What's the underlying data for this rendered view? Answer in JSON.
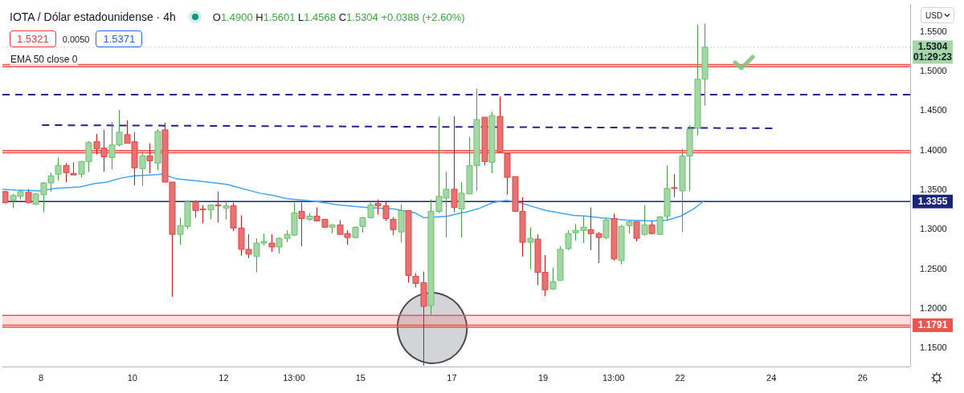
{
  "chart_data": {
    "type": "candlestick",
    "title": "IOTA / Dólar estadounidense · 4h",
    "subtitle": "O1.4900 H1.5601 L1.4568 C1.5304 +0.0388 (+2.60%)",
    "ylabel": "USD",
    "annotations": [
      "1.5321",
      "0.0050",
      "1.5371",
      "EMA 50 close 0"
    ],
    "x": [
      "--12-07T05:00",
      "--12-07T09:00",
      "--12-07T13:00",
      "--12-07T17:00",
      "--12-07T21:00",
      "--12-08T01:00",
      "--12-08T05:00",
      "--12-08T09:00",
      "--12-08T13:00",
      "--12-08T17:00",
      "--12-08T21:00",
      "--12-09T01:00",
      "--12-09T05:00",
      "--12-09T09:00",
      "--12-09T13:00",
      "--12-09T17:00",
      "--12-09T21:00",
      "--12-10T01:00",
      "--12-10T05:00",
      "--12-10T09:00",
      "--12-10T13:00",
      "--12-10T17:00",
      "--12-10T21:00",
      "--12-11T01:00",
      "--12-11T05:00",
      "--12-11T09:00",
      "--12-11T13:00",
      "--12-11T17:00",
      "--12-11T21:00",
      "--12-12T01:00",
      "--12-12T05:00",
      "--12-12T09:00",
      "--12-12T13:00",
      "--12-12T17:00",
      "--12-12T21:00",
      "--12-13T01:00",
      "--12-13T05:00",
      "--12-13T09:00",
      "--12-13T13:00",
      "--12-13T17:00",
      "--12-13T21:00",
      "--12-14T01:00",
      "--12-14T05:00",
      "--12-14T09:00",
      "--12-14T13:00",
      "--12-14T17:00",
      "--12-14T21:00",
      "--12-15T01:00",
      "--12-15T05:00",
      "--12-15T09:00",
      "--12-15T13:00",
      "--12-15T17:00",
      "--12-15T21:00",
      "--12-16T01:00",
      "--12-16T05:00",
      "--12-16T09:00",
      "--12-16T13:00",
      "--12-16T17:00",
      "--12-16T21:00",
      "--12-17T01:00",
      "--12-17T05:00",
      "--12-17T09:00",
      "--12-17T13:00",
      "--12-17T17:00",
      "--12-17T21:00",
      "--12-18T01:00",
      "--12-18T05:00",
      "--12-18T09:00",
      "--12-18T13:00",
      "--12-18T17:00",
      "--12-18T21:00",
      "--12-19T01:00",
      "--12-19T05:00",
      "--12-19T09:00",
      "--12-19T13:00",
      "--12-19T17:00",
      "--12-19T21:00",
      "--12-20T01:00",
      "--12-20T05:00",
      "--12-20T09:00",
      "--12-20T13:00",
      "--12-20T17:00",
      "--12-20T21:00",
      "--12-21T01:00",
      "--12-21T05:00",
      "--12-21T09:00",
      "--12-21T13:00",
      "--12-21T17:00",
      "--12-21T21:00",
      "--12-22T01:00",
      "--12-22T05:00",
      "--12-22T09:00",
      "--12-22T13:00"
    ],
    "ohlc": [
      [
        1.348,
        1.349,
        1.333,
        1.334
      ],
      [
        1.337,
        1.345,
        1.327,
        1.343
      ],
      [
        1.342,
        1.35,
        1.338,
        1.348
      ],
      [
        1.347,
        1.351,
        1.333,
        1.334
      ],
      [
        1.332,
        1.346,
        1.331,
        1.345
      ],
      [
        1.344,
        1.36,
        1.322,
        1.359
      ],
      [
        1.359,
        1.372,
        1.348,
        1.368
      ],
      [
        1.37,
        1.391,
        1.362,
        1.381
      ],
      [
        1.381,
        1.384,
        1.36,
        1.372
      ],
      [
        1.371,
        1.385,
        1.369,
        1.369
      ],
      [
        1.37,
        1.387,
        1.366,
        1.386
      ],
      [
        1.386,
        1.412,
        1.373,
        1.41
      ],
      [
        1.411,
        1.421,
        1.395,
        1.402
      ],
      [
        1.403,
        1.426,
        1.373,
        1.392
      ],
      [
        1.391,
        1.436,
        1.376,
        1.407
      ],
      [
        1.407,
        1.451,
        1.405,
        1.423
      ],
      [
        1.42,
        1.438,
        1.409,
        1.409
      ],
      [
        1.411,
        1.423,
        1.356,
        1.378
      ],
      [
        1.377,
        1.398,
        1.355,
        1.393
      ],
      [
        1.393,
        1.409,
        1.371,
        1.387
      ],
      [
        1.384,
        1.427,
        1.375,
        1.424
      ],
      [
        1.426,
        1.435,
        1.36,
        1.36
      ],
      [
        1.36,
        1.36,
        1.215,
        1.294
      ],
      [
        1.294,
        1.315,
        1.281,
        1.305
      ],
      [
        1.304,
        1.335,
        1.301,
        1.335
      ],
      [
        1.335,
        1.337,
        1.315,
        1.324
      ],
      [
        1.326,
        1.331,
        1.308,
        1.325
      ],
      [
        1.325,
        1.332,
        1.313,
        1.331
      ],
      [
        1.331,
        1.348,
        1.309,
        1.33
      ],
      [
        1.327,
        1.337,
        1.313,
        1.33
      ],
      [
        1.33,
        1.334,
        1.298,
        1.302
      ],
      [
        1.302,
        1.318,
        1.267,
        1.275
      ],
      [
        1.275,
        1.294,
        1.264,
        1.269
      ],
      [
        1.266,
        1.289,
        1.246,
        1.283
      ],
      [
        1.283,
        1.295,
        1.28,
        1.285
      ],
      [
        1.283,
        1.294,
        1.272,
        1.278
      ],
      [
        1.278,
        1.29,
        1.27,
        1.289
      ],
      [
        1.289,
        1.299,
        1.284,
        1.294
      ],
      [
        1.293,
        1.334,
        1.292,
        1.321
      ],
      [
        1.323,
        1.334,
        1.279,
        1.314
      ],
      [
        1.313,
        1.321,
        1.311,
        1.317
      ],
      [
        1.317,
        1.328,
        1.311,
        1.311
      ],
      [
        1.313,
        1.313,
        1.303,
        1.303
      ],
      [
        1.303,
        1.307,
        1.295,
        1.306
      ],
      [
        1.306,
        1.312,
        1.294,
        1.294
      ],
      [
        1.295,
        1.299,
        1.281,
        1.29
      ],
      [
        1.29,
        1.304,
        1.289,
        1.303
      ],
      [
        1.304,
        1.316,
        1.296,
        1.315
      ],
      [
        1.315,
        1.336,
        1.314,
        1.331
      ],
      [
        1.333,
        1.338,
        1.319,
        1.33
      ],
      [
        1.33,
        1.335,
        1.311,
        1.314
      ],
      [
        1.313,
        1.316,
        1.293,
        1.3
      ],
      [
        1.297,
        1.332,
        1.284,
        1.324
      ],
      [
        1.324,
        1.324,
        1.233,
        1.242
      ],
      [
        1.241,
        1.245,
        1.227,
        1.232
      ],
      [
        1.233,
        1.247,
        1.128,
        1.203
      ],
      [
        1.204,
        1.338,
        1.192,
        1.323
      ],
      [
        1.323,
        1.442,
        1.321,
        1.342
      ],
      [
        1.34,
        1.373,
        1.29,
        1.351
      ],
      [
        1.351,
        1.443,
        1.322,
        1.328
      ],
      [
        1.326,
        1.36,
        1.29,
        1.346
      ],
      [
        1.345,
        1.417,
        1.345,
        1.381
      ],
      [
        1.381,
        1.478,
        1.349,
        1.439
      ],
      [
        1.442,
        1.442,
        1.381,
        1.386
      ],
      [
        1.385,
        1.449,
        1.371,
        1.444
      ],
      [
        1.443,
        1.468,
        1.398,
        1.398
      ],
      [
        1.396,
        1.396,
        1.344,
        1.366
      ],
      [
        1.367,
        1.367,
        1.323,
        1.323
      ],
      [
        1.323,
        1.341,
        1.266,
        1.284
      ],
      [
        1.284,
        1.303,
        1.25,
        1.289
      ],
      [
        1.288,
        1.294,
        1.23,
        1.246
      ],
      [
        1.246,
        1.268,
        1.216,
        1.224
      ],
      [
        1.225,
        1.252,
        1.224,
        1.234
      ],
      [
        1.236,
        1.279,
        1.236,
        1.275
      ],
      [
        1.276,
        1.299,
        1.274,
        1.295
      ],
      [
        1.296,
        1.307,
        1.286,
        1.299
      ],
      [
        1.299,
        1.317,
        1.283,
        1.303
      ],
      [
        1.3,
        1.328,
        1.274,
        1.295
      ],
      [
        1.295,
        1.297,
        1.258,
        1.29
      ],
      [
        1.29,
        1.315,
        1.288,
        1.312
      ],
      [
        1.314,
        1.32,
        1.261,
        1.263
      ],
      [
        1.261,
        1.306,
        1.256,
        1.304
      ],
      [
        1.305,
        1.312,
        1.295,
        1.31
      ],
      [
        1.31,
        1.31,
        1.285,
        1.289
      ],
      [
        1.294,
        1.331,
        1.292,
        1.306
      ],
      [
        1.306,
        1.311,
        1.294,
        1.295
      ],
      [
        1.294,
        1.317,
        1.294,
        1.316
      ],
      [
        1.317,
        1.381,
        1.311,
        1.352
      ],
      [
        1.353,
        1.37,
        1.341,
        1.352
      ],
      [
        1.349,
        1.402,
        1.297,
        1.393
      ],
      [
        1.393,
        1.432,
        1.349,
        1.427
      ],
      [
        1.428,
        1.559,
        1.419,
        1.49
      ],
      [
        1.49,
        1.5601,
        1.4568,
        1.5304
      ]
    ],
    "colors": [
      "#e57373",
      "#a5d6a7",
      "#a5d6a7",
      "#e57373",
      "#a5d6a7",
      "#a5d6a7",
      "#a5d6a7",
      "#a5d6a7",
      "#e57373",
      "#e57373",
      "#a5d6a7",
      "#a5d6a7",
      "#e57373",
      "#e57373",
      "#a5d6a7",
      "#a5d6a7",
      "#e57373",
      "#e57373",
      "#a5d6a7",
      "#e57373",
      "#a5d6a7",
      "#e57373",
      "#e57373",
      "#a5d6a7",
      "#a5d6a7",
      "#e57373",
      "#e57373",
      "#a5d6a7",
      "#e57373",
      "#a5d6a7",
      "#e57373",
      "#e57373",
      "#e57373",
      "#a5d6a7",
      "#a5d6a7",
      "#e57373",
      "#a5d6a7",
      "#a5d6a7",
      "#a5d6a7",
      "#e57373",
      "#a5d6a7",
      "#e57373",
      "#e57373",
      "#a5d6a7",
      "#e57373",
      "#e57373",
      "#a5d6a7",
      "#a5d6a7",
      "#a5d6a7",
      "#e57373",
      "#e57373",
      "#e57373",
      "#a5d6a7",
      "#e57373",
      "#e57373",
      "#e57373",
      "#a5d6a7",
      "#a5d6a7",
      "#a5d6a7",
      "#e57373",
      "#a5d6a7",
      "#a5d6a7",
      "#a5d6a7",
      "#e57373",
      "#a5d6a7",
      "#e57373",
      "#e57373",
      "#e57373",
      "#e57373",
      "#a5d6a7",
      "#e57373",
      "#e57373",
      "#a5d6a7",
      "#a5d6a7",
      "#a5d6a7",
      "#a5d6a7",
      "#a5d6a7",
      "#e57373",
      "#e57373",
      "#a5d6a7",
      "#e57373",
      "#a5d6a7",
      "#a5d6a7",
      "#e57373",
      "#a5d6a7",
      "#e57373",
      "#a5d6a7",
      "#a5d6a7",
      "#e57373",
      "#a5d6a7",
      "#a5d6a7",
      "#a5d6a7",
      "#a5d6a7"
    ],
    "series": [
      {
        "type": "line",
        "color": "#42a5f5",
        "x": [
          "--12-07T03:40",
          "--12-07T10:50",
          "--12-07T23:30",
          "--12-08T06:50",
          "--12-08T20:40",
          "--12-09T03:50",
          "--12-09T10:40",
          "--12-09T17:50",
          "--12-10T01:00",
          "--12-10T09:20",
          "--12-10T15:20",
          "--12-10T18:20",
          "--12-10T23:20",
          "--12-11T08:00",
          "--12-11T19:10",
          "--12-12T02:00",
          "--12-12T05:00",
          "--12-12T19:00",
          "--12-13T02:10",
          "--12-13T09:20",
          "--12-13T23:20",
          "--12-14T13:10",
          "--12-15T03:40",
          "--12-15T17:30",
          "--12-16T04:50",
          "--12-16T09:10",
          "--12-16T15:50",
          "--12-16T21:50",
          "--12-17T04:40",
          "--12-17T07:30",
          "--12-17T14:40",
          "--12-17T21:20",
          "--12-18T04:40",
          "--12-18T11:50",
          "--12-18T18:30",
          "--12-19T01:40",
          "--12-19T08:50",
          "--12-19T15:40",
          "--12-19T22:50",
          "--12-20T06:00",
          "--12-20T20:00",
          "--12-21T09:50",
          "--12-21T17:10",
          "--12-22T00:20",
          "--12-22T07:00",
          "--12-22T13:00"
        ],
        "values": [
          1.351,
          1.35,
          1.349,
          1.352,
          1.354,
          1.358,
          1.36,
          1.365,
          1.368,
          1.369,
          1.37,
          1.368,
          1.364,
          1.362,
          1.359,
          1.357,
          1.355,
          1.346,
          1.343,
          1.339,
          1.336,
          1.331,
          1.328,
          1.326,
          1.321,
          1.315,
          1.316,
          1.317,
          1.321,
          1.322,
          1.327,
          1.334,
          1.337,
          1.334,
          1.329,
          1.324,
          1.321,
          1.318,
          1.317,
          1.315,
          1.312,
          1.311,
          1.312,
          1.317,
          1.326,
          1.337
        ]
      },
      {
        "type": "line",
        "color": "#311b92",
        "line_style": "dashed",
        "x": [
          "--12-08T00:30",
          "--12-24T00:30"
        ],
        "values": [
          1.432,
          1.428
        ]
      }
    ],
    "ref_lines": [
      {
        "axis": "y",
        "value": 1.5304,
        "label": "1.5304\n01:29:23",
        "color": "#a5d6a7",
        "line_style": "dotted"
      },
      {
        "axis": "y",
        "value": 1.4705,
        "color": "#311b92",
        "line_style": "dashed"
      },
      {
        "axis": "y",
        "value": 1.3355,
        "label": "1.3355",
        "color": "#1a237e"
      },
      {
        "axis": "y",
        "value": 1.1791,
        "label": "1.1791",
        "color": "#ef5350"
      },
      {
        "axis": "y",
        "value": 1.5084,
        "color": "#ef5350"
      },
      {
        "axis": "y",
        "value": 1.5056,
        "color": "#ef5350"
      },
      {
        "axis": "y",
        "value": 1.3998,
        "color": "#ef5350"
      },
      {
        "axis": "y",
        "value": 1.3971,
        "color": "#ef5350"
      },
      {
        "axis": "y",
        "value": 1.1916,
        "color": "#ef5350"
      },
      {
        "axis": "y",
        "value": 1.1766,
        "color": "#ef5350"
      }
    ],
    "bands": [
      {
        "axis": "y",
        "from": 1.5056,
        "to": 1.5084,
        "color": "#ef5350"
      },
      {
        "axis": "y",
        "from": 1.3971,
        "to": 1.3998,
        "color": "#ef5350"
      },
      {
        "axis": "y",
        "from": 1.1766,
        "to": 1.1916,
        "color": "#ef5350"
      }
    ],
    "xlim": [
      "--12-07T03:40",
      "--12-27T01:00"
    ],
    "xticks": [
      {
        "value": "--12-08",
        "label": "8"
      },
      {
        "value": "--12-10",
        "label": "10"
      },
      {
        "value": "--12-12",
        "label": "12"
      },
      {
        "value": "--12-13T13:00",
        "label": "13:00"
      },
      {
        "value": "--12-15",
        "label": "15"
      },
      {
        "value": "--12-17",
        "label": "17"
      },
      {
        "value": "--12-19",
        "label": "19"
      },
      {
        "value": "--12-20T13:00",
        "label": "13:00"
      },
      {
        "value": "--12-22",
        "label": "22"
      },
      {
        "value": "--12-24",
        "label": "24"
      },
      {
        "value": "--12-26",
        "label": "26"
      }
    ],
    "ylim": [
      1.127,
      1.585
    ],
    "yticks": [
      {
        "value": 1.15,
        "label": "1.1500"
      },
      {
        "value": 1.2,
        "label": "1.2000"
      },
      {
        "value": 1.25,
        "label": "1.2500"
      },
      {
        "value": 1.3,
        "label": "1.3000"
      },
      {
        "value": 1.35,
        "label": "1.3500"
      },
      {
        "value": 1.4,
        "label": "1.4000"
      },
      {
        "value": 1.45,
        "label": "1.4500"
      },
      {
        "value": 1.5,
        "label": "1.5000"
      },
      {
        "value": 1.55,
        "label": "1.5500"
      }
    ]
  }
}
